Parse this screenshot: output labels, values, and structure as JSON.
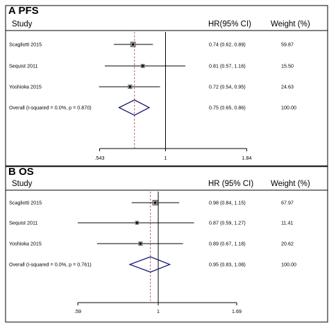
{
  "chart_data": [
    {
      "type": "forest",
      "title": "A  PFS",
      "columns": {
        "study": "Study",
        "hr": "HR(95% CI)",
        "weight": "Weight (%)"
      },
      "rows": [
        {
          "study": "Scagliotti 2015",
          "hr": 0.74,
          "lo": 0.62,
          "hi": 0.89,
          "hr_text": "0.74 (0.62, 0.89)",
          "weight": 59.87,
          "weight_text": "59.87",
          "kind": "study"
        },
        {
          "study": "Sequist 2011",
          "hr": 0.81,
          "lo": 0.57,
          "hi": 1.16,
          "hr_text": "0.81 (0.57, 1.16)",
          "weight": 15.5,
          "weight_text": "15.50",
          "kind": "study"
        },
        {
          "study": "Yoshioka 2015",
          "hr": 0.72,
          "lo": 0.54,
          "hi": 0.95,
          "hr_text": "0.72 (0.54, 0.95)",
          "weight": 24.63,
          "weight_text": "24.63",
          "kind": "study"
        },
        {
          "study": "Overall  (I-squared = 0.0%, p = 0.870)",
          "hr": 0.75,
          "lo": 0.65,
          "hi": 0.86,
          "hr_text": "0.75 (0.65, 0.86)",
          "weight": 100,
          "weight_text": "100.00",
          "kind": "overall"
        }
      ],
      "x_scale": "log",
      "xlim": [
        0.543,
        1.84
      ],
      "ticks": [
        {
          "value": 0.543,
          "label": ".543"
        },
        {
          "value": 1,
          "label": "1"
        },
        {
          "value": 1.84,
          "label": "1.84"
        }
      ]
    },
    {
      "type": "forest",
      "title": "B  OS",
      "columns": {
        "study": "Study",
        "hr": "HR (95% CI)",
        "weight": "Weight (%)"
      },
      "rows": [
        {
          "study": "Scagliotti 2015",
          "hr": 0.98,
          "lo": 0.84,
          "hi": 1.15,
          "hr_text": "0.98 (0.84, 1.15)",
          "weight": 67.97,
          "weight_text": "67.97",
          "kind": "study"
        },
        {
          "study": "Sequist 2011",
          "hr": 0.87,
          "lo": 0.59,
          "hi": 1.27,
          "hr_text": "0.87 (0.59, 1.27)",
          "weight": 11.41,
          "weight_text": "11.41",
          "kind": "study"
        },
        {
          "study": "Yoshioka 2015",
          "hr": 0.89,
          "lo": 0.67,
          "hi": 1.18,
          "hr_text": "0.89 (0.67, 1.18)",
          "weight": 20.62,
          "weight_text": "20.62",
          "kind": "study"
        },
        {
          "study": "Overall  (I-squared = 0.0%, p = 0.761)",
          "hr": 0.95,
          "lo": 0.83,
          "hi": 1.08,
          "hr_text": "0.95 (0.83, 1.08)",
          "weight": 100,
          "weight_text": "100.00",
          "kind": "overall"
        }
      ],
      "x_scale": "log",
      "xlim": [
        0.59,
        1.69
      ],
      "ticks": [
        {
          "value": 0.59,
          "label": ".59"
        },
        {
          "value": 1,
          "label": "1"
        },
        {
          "value": 1.69,
          "label": "1.69"
        }
      ]
    }
  ],
  "colors": {
    "line": "#000000",
    "overall_diamond": "#1c1c78",
    "pooled_reference": "#c0504d",
    "weight_box": "#8c8c8c"
  }
}
